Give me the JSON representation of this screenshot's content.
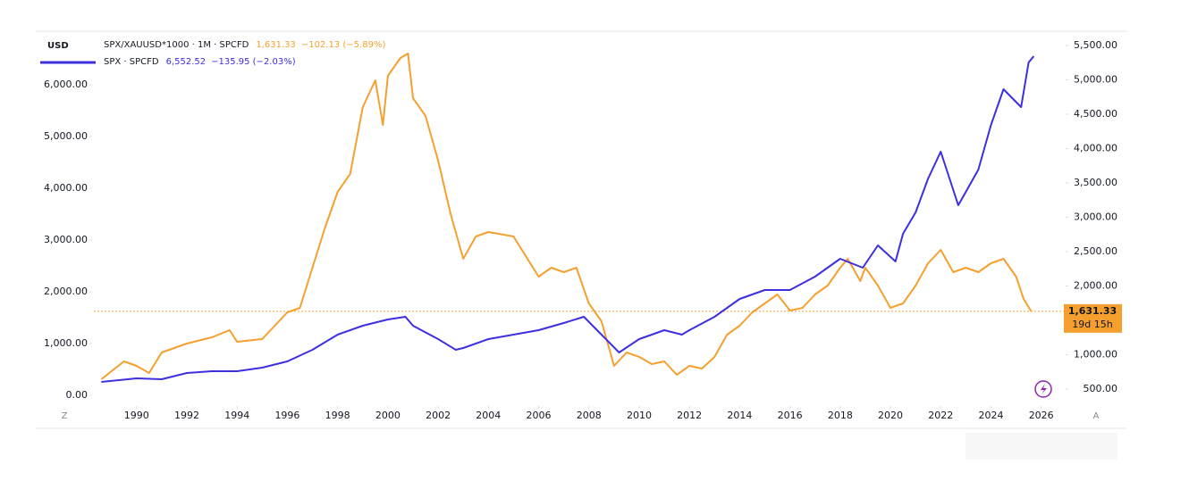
{
  "chart_data": {
    "type": "line",
    "currency": "USD",
    "corner_left": "Z",
    "corner_right": "A",
    "xlim": [
      1988.3,
      2026.9
    ],
    "xticks": [
      1990,
      1992,
      1994,
      1996,
      1998,
      2000,
      2002,
      2004,
      2006,
      2008,
      2010,
      2012,
      2014,
      2016,
      2018,
      2020,
      2022,
      2024,
      2026
    ],
    "ylim": [
      -207,
      6983
    ],
    "yticks": [
      {
        "value": 0,
        "label": "0.00"
      },
      {
        "value": 1000,
        "label": "1,000.00"
      },
      {
        "value": 2000,
        "label": "2,000.00"
      },
      {
        "value": 3000,
        "label": "3,000.00"
      },
      {
        "value": 4000,
        "label": "4,000.00"
      },
      {
        "value": 5000,
        "label": "5,000.00"
      },
      {
        "value": 6000,
        "label": "6,000.00"
      }
    ],
    "y2lim": [
      253,
      5669
    ],
    "y2ticks": [
      {
        "value": 500,
        "label": "500.00"
      },
      {
        "value": 1000,
        "label": "1,000.00"
      },
      {
        "value": 1500,
        "label": "1,500.00"
      },
      {
        "value": 2000,
        "label": "2,000.00"
      },
      {
        "value": 2500,
        "label": "2,500.00"
      },
      {
        "value": 3000,
        "label": "3,000.00"
      },
      {
        "value": 3500,
        "label": "3,500.00"
      },
      {
        "value": 4000,
        "label": "4,000.00"
      },
      {
        "value": 4500,
        "label": "4,500.00"
      },
      {
        "value": 5000,
        "label": "5,000.00"
      },
      {
        "value": 5500,
        "label": "5,500.00"
      }
    ],
    "series": [
      {
        "name": "SPX/XAUUSD*1000 · 1M · SPCFD",
        "color": "#f5a02e",
        "axis": "y2",
        "price": {
          "value": 1631.33,
          "label": "1,631.33"
        },
        "change": "−102.13 (−5.89%)",
        "countdown": "19d 15h",
        "x": [
          1988.6,
          1989.5,
          1990,
          1990.5,
          1991,
          1992,
          1993,
          1993.7,
          1994,
          1995,
          1996,
          1996.5,
          1997,
          1997.5,
          1998,
          1998.5,
          1999,
          1999.5,
          1999.8,
          2000,
          2000.5,
          2000.8,
          2001,
          2001.5,
          2002,
          2002.5,
          2003,
          2003.5,
          2004,
          2005,
          2006,
          2006.5,
          2007,
          2007.5,
          2008,
          2008.5,
          2009,
          2009.5,
          2010,
          2010.5,
          2011,
          2011.5,
          2012,
          2012.5,
          2013,
          2013.5,
          2014,
          2014.5,
          2015,
          2015.5,
          2016,
          2016.5,
          2017,
          2017.5,
          2018,
          2018.3,
          2018.8,
          2019,
          2019.5,
          2020,
          2020.5,
          2021,
          2021.5,
          2022,
          2022.5,
          2023,
          2023.5,
          2024,
          2024.5,
          2025,
          2025.3,
          2025.6
        ],
        "values": [
          643,
          903,
          838,
          734,
          1032,
          1162,
          1253,
          1357,
          1188,
          1227,
          1617,
          1682,
          2266,
          2851,
          3370,
          3630,
          4604,
          4994,
          4344,
          5058,
          5318,
          5383,
          4734,
          4474,
          3825,
          3045,
          2396,
          2721,
          2786,
          2721,
          2136,
          2266,
          2201,
          2266,
          1747,
          1487,
          838,
          1032,
          968,
          864,
          903,
          708,
          838,
          799,
          968,
          1292,
          1422,
          1617,
          1747,
          1877,
          1643,
          1682,
          1877,
          2006,
          2266,
          2396,
          2071,
          2266,
          2006,
          1682,
          1747,
          2006,
          2331,
          2526,
          2201,
          2266,
          2201,
          2331,
          2396,
          2136,
          1812,
          1631.33
        ]
      },
      {
        "name": "SPX · SPCFD",
        "color": "#3d2fe0",
        "axis": "y",
        "price": {
          "value": 6552.52,
          "label": "6,552.52"
        },
        "change": "−135.95 (−2.03%)",
        "x": [
          1988.6,
          1990,
          1991,
          1992,
          1993,
          1994,
          1995,
          1996,
          1997,
          1998,
          1999,
          2000,
          2000.7,
          2001,
          2002,
          2002.7,
          2003,
          2004,
          2005,
          2006,
          2007,
          2007.8,
          2008.5,
          2009.2,
          2010,
          2011,
          2011.7,
          2012,
          2013,
          2014,
          2015,
          2016,
          2017,
          2018,
          2018.9,
          2019.5,
          2020.2,
          2020.5,
          2021,
          2021.5,
          2022,
          2022.7,
          2023,
          2023.5,
          2024,
          2024.5,
          2025.2,
          2025.5,
          2025.7
        ],
        "values": [
          259,
          328,
          310,
          431,
          466,
          466,
          534,
          655,
          879,
          1172,
          1345,
          1466,
          1517,
          1345,
          1086,
          879,
          914,
          1086,
          1172,
          1259,
          1397,
          1517,
          1172,
          828,
          1086,
          1259,
          1172,
          1259,
          1517,
          1862,
          2034,
          2034,
          2293,
          2638,
          2466,
          2897,
          2586,
          3121,
          3534,
          4190,
          4707,
          3672,
          3931,
          4362,
          5224,
          5914,
          5569,
          6431,
          6552.52
        ]
      }
    ]
  }
}
